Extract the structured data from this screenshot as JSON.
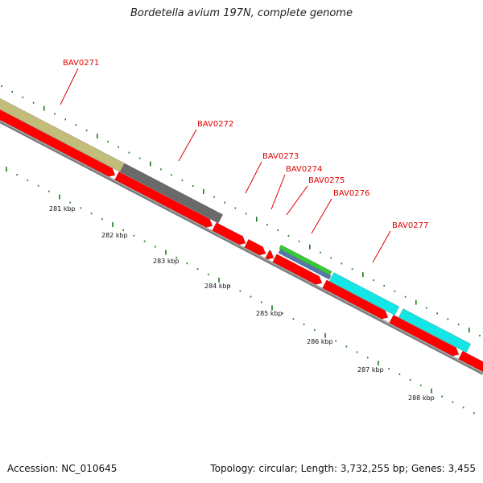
{
  "title": "Bordetella avium 197N, complete genome",
  "footer": {
    "accession": "Accession: NC_010645",
    "summary": "Topology: circular; Length: 3,732,255 bp; Genes: 3,455"
  },
  "colors": {
    "cds": "#ff0000",
    "backbone": "#808080",
    "tick": "#1a7a1a",
    "label": "#e00000",
    "feature_khaki": "#c2bd7a",
    "feature_gray": "#6a6a6a",
    "feature_green": "#33cc33",
    "feature_blue": "#5577aa",
    "feature_cyan": "#14e6e6"
  },
  "gene_labels": [
    "BAV0271",
    "BAV0272",
    "BAV0273",
    "BAV0274",
    "BAV0275",
    "BAV0276",
    "BAV0277"
  ],
  "scale_labels": [
    "281 kbp",
    "282 kbp",
    "283 kbp",
    "284 kbp",
    "285 kbp",
    "286 kbp",
    "287 kbp",
    "288 kbp"
  ]
}
